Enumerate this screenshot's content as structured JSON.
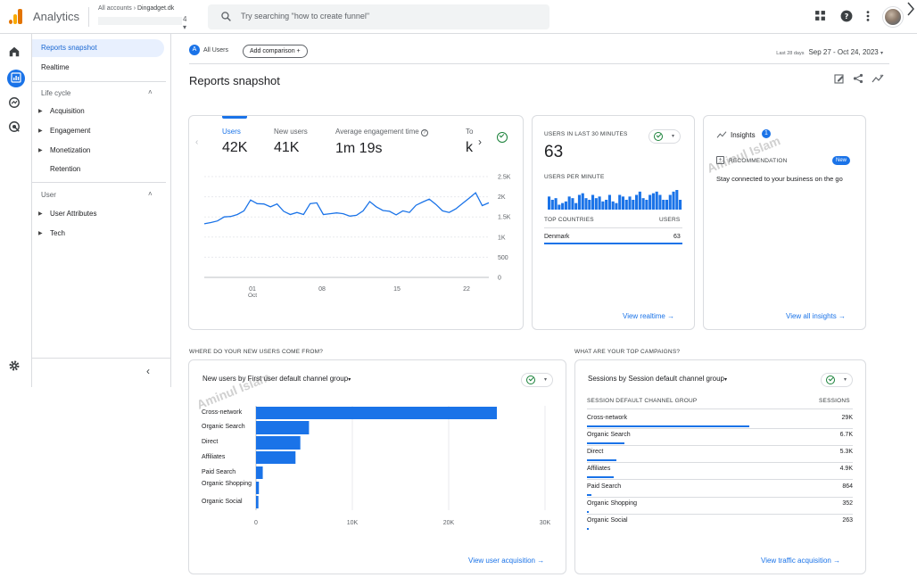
{
  "header": {
    "app_title": "Analytics",
    "accounts_label": "All accounts",
    "account_name": "Dingadget.dk",
    "property_tail": "4",
    "search_placeholder": "Try searching \"how to create funnel\""
  },
  "nav": {
    "reports_snapshot": "Reports snapshot",
    "realtime": "Realtime",
    "lifecycle_section": "Life cycle",
    "acquisition": "Acquisition",
    "engagement": "Engagement",
    "monetization": "Monetization",
    "retention": "Retention",
    "user_section": "User",
    "user_attributes": "User Attributes",
    "tech": "Tech"
  },
  "toolbar": {
    "all_users": "All Users",
    "all_users_letter": "A",
    "add_comparison": "Add comparison",
    "date_prefix": "Last 28 days",
    "date_range": "Sep 27 - Oct 24, 2023"
  },
  "page_title": "Reports snapshot",
  "metrics": [
    {
      "label": "Users",
      "value": "42K"
    },
    {
      "label": "New users",
      "value": "41K"
    },
    {
      "label": "Average engagement time",
      "value": "1m 19s"
    },
    {
      "label": "To",
      "value": "k"
    }
  ],
  "chart_data": [
    {
      "type": "line",
      "title": "",
      "x_ticks": [
        "01 Oct",
        "08",
        "15",
        "22"
      ],
      "y_ticks": [
        "2.5K",
        "2K",
        "1.5K",
        "1K",
        "500",
        "0"
      ],
      "ylim": [
        0,
        2500
      ],
      "series": [
        {
          "values": [
            1330,
            1360,
            1400,
            1500,
            1510,
            1560,
            1650,
            1920,
            1830,
            1820,
            1750,
            1820,
            1640,
            1560,
            1610,
            1560,
            1830,
            1850,
            1560,
            1580,
            1600,
            1580,
            1520,
            1540,
            1650,
            1880,
            1750,
            1660,
            1640,
            1550,
            1650,
            1610,
            1790,
            1870,
            1940,
            1810,
            1650,
            1610,
            1700,
            1830,
            1960,
            2100,
            1780,
            1850
          ]
        }
      ]
    },
    {
      "type": "bar",
      "title": "USERS PER MINUTE",
      "values": [
        8,
        6,
        7,
        3,
        4,
        5,
        8,
        7,
        4,
        9,
        10,
        7,
        6,
        9,
        7,
        8,
        5,
        6,
        9,
        5,
        4,
        9,
        8,
        6,
        8,
        6,
        9,
        11,
        7,
        6,
        9,
        10,
        11,
        9,
        6,
        6,
        9,
        11,
        12,
        6
      ]
    },
    {
      "type": "bar",
      "title": "New users by First user default channel group",
      "categories": [
        "Cross-network",
        "Organic Search",
        "Direct",
        "Affiliates",
        "Paid Search",
        "Organic Shopping",
        "Organic Social"
      ],
      "values": [
        25000,
        5500,
        4600,
        4100,
        700,
        300,
        250
      ],
      "xlim": [
        0,
        30000
      ],
      "x_ticks": [
        "0",
        "10K",
        "20K",
        "30K"
      ]
    }
  ],
  "realtime": {
    "title": "USERS IN LAST 30 MINUTES",
    "value": "63",
    "per_minute_label": "USERS PER MINUTE",
    "top_countries_label": "TOP COUNTRIES",
    "users_col": "USERS",
    "country": "Denmark",
    "country_users": "63",
    "link": "View realtime"
  },
  "insights": {
    "title": "Insights",
    "count": "1",
    "recommendation": "RECOMMENDATION",
    "badge": "New",
    "text": "Stay connected to your business on the go",
    "link": "View all insights"
  },
  "sections": {
    "new_users": "WHERE DO YOUR NEW USERS COME FROM?",
    "campaigns": "WHAT ARE YOUR TOP CAMPAIGNS?"
  },
  "acquisition_card": {
    "dropdown": "New users by First user default channel group",
    "link": "View user acquisition"
  },
  "campaigns_card": {
    "dropdown": "Sessions by Session default channel group",
    "col_group": "SESSION DEFAULT CHANNEL GROUP",
    "col_sessions": "SESSIONS",
    "rows": [
      {
        "name": "Cross-network",
        "value": "29K",
        "pct": 0.61
      },
      {
        "name": "Organic Search",
        "value": "6.7K",
        "pct": 0.14
      },
      {
        "name": "Direct",
        "value": "5.3K",
        "pct": 0.11
      },
      {
        "name": "Affiliates",
        "value": "4.9K",
        "pct": 0.1
      },
      {
        "name": "Paid Search",
        "value": "864",
        "pct": 0.018
      },
      {
        "name": "Organic Shopping",
        "value": "352",
        "pct": 0.008
      },
      {
        "name": "Organic Social",
        "value": "263",
        "pct": 0.006
      }
    ],
    "link": "View traffic acquisition"
  },
  "watermark": "Aminul Islam",
  "colors": {
    "accent": "#1a73e8",
    "nav_active_bg": "#e8f0fe",
    "success": "#188038"
  }
}
